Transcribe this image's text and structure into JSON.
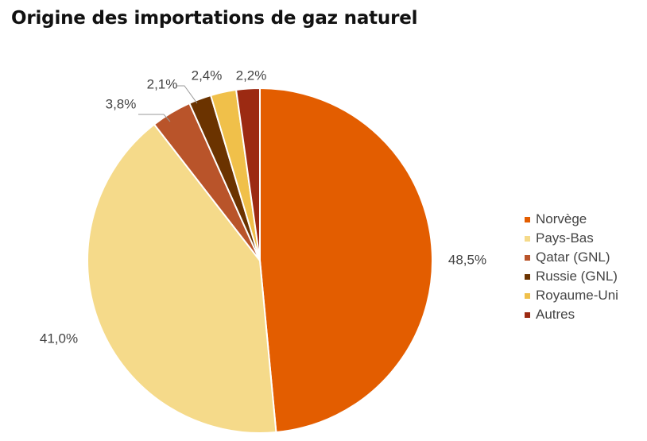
{
  "chart_data": {
    "type": "pie",
    "title": "Origine des importations de gaz naturel",
    "slices": [
      {
        "label": "Norvège",
        "value": 48.5,
        "display": "48,5%",
        "color": "#e35d00"
      },
      {
        "label": "Pays-Bas",
        "value": 41.0,
        "display": "41,0%",
        "color": "#f5da8a"
      },
      {
        "label": "Qatar (GNL)",
        "value": 3.8,
        "display": "3,8%",
        "color": "#b9542a"
      },
      {
        "label": "Russie (GNL)",
        "value": 2.1,
        "display": "2,1%",
        "color": "#6b3300"
      },
      {
        "label": "Royaume-Uni",
        "value": 2.4,
        "display": "2,4%",
        "color": "#f0c04a"
      },
      {
        "label": "Autres",
        "value": 2.2,
        "display": "2,2%",
        "color": "#9c2a12"
      }
    ],
    "legend_position": "right"
  }
}
